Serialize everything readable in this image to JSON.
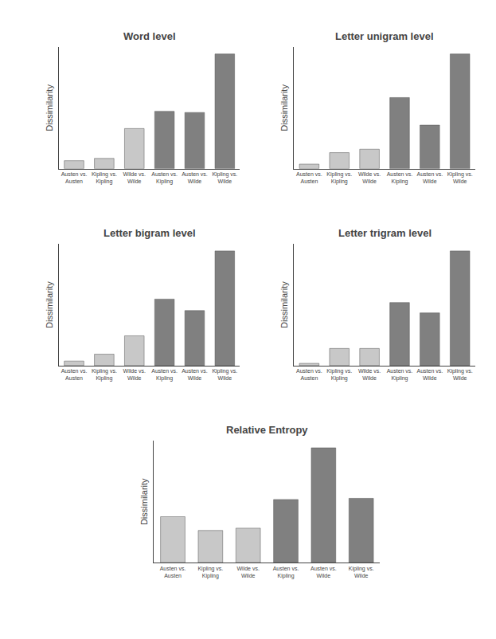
{
  "chart_data": [
    {
      "type": "bar",
      "title": "Word level",
      "categories": [
        "Austen vs.\nAusten",
        "Kipling vs.\nKipling",
        "Wilde vs.\nWilde",
        "Austen vs.\nKipling",
        "Austen vs.\nWilde",
        "Kipling vs.\nWilde"
      ],
      "values": [
        0.07,
        0.09,
        0.35,
        0.5,
        0.49,
        1.0
      ],
      "colors": [
        "#c8c8c8",
        "#c8c8c8",
        "#c8c8c8",
        "#808080",
        "#808080",
        "#808080"
      ],
      "ylabel": "Dissimilarity",
      "ylim": [
        0,
        1.06
      ],
      "yticks": [],
      "tick_labels": "x",
      "grid": false
    },
    {
      "type": "bar",
      "title": "Letter unigram level",
      "categories": [
        "Austen vs.\nAusten",
        "Kipling vs.\nKipling",
        "Wilde vs.\nWilde",
        "Austen vs.\nKipling",
        "Austen vs.\nWilde",
        "Kipling vs.\nWilde"
      ],
      "values": [
        0.04,
        0.14,
        0.17,
        0.62,
        0.38,
        1.0
      ],
      "colors": [
        "#c8c8c8",
        "#c8c8c8",
        "#c8c8c8",
        "#808080",
        "#808080",
        "#808080"
      ],
      "ylabel": "Dissimilarity",
      "ylim": [
        0,
        1.06
      ],
      "yticks": [],
      "tick_labels": "x",
      "grid": false
    },
    {
      "type": "bar",
      "title": "Letter bigram level",
      "categories": [
        "Austen vs.\nAusten",
        "Kipling vs.\nKipling",
        "Wilde vs.\nWilde",
        "Austen vs.\nKipling",
        "Austen vs.\nWilde",
        "Kipling vs.\nWilde"
      ],
      "values": [
        0.04,
        0.1,
        0.26,
        0.58,
        0.48,
        1.0
      ],
      "colors": [
        "#c8c8c8",
        "#c8c8c8",
        "#c8c8c8",
        "#808080",
        "#808080",
        "#808080"
      ],
      "ylabel": "Dissimilarity",
      "ylim": [
        0,
        1.06
      ],
      "yticks": [],
      "tick_labels": "x",
      "grid": false
    },
    {
      "type": "bar",
      "title": "Letter trigram level",
      "categories": [
        "Austen vs.\nAusten",
        "Kipling vs.\nKipling",
        "Wilde vs.\nWilde",
        "Austen vs.\nKipling",
        "Austen vs.\nWilde",
        "Kipling vs.\nWilde"
      ],
      "values": [
        0.02,
        0.15,
        0.15,
        0.55,
        0.46,
        1.0
      ],
      "colors": [
        "#c8c8c8",
        "#c8c8c8",
        "#c8c8c8",
        "#808080",
        "#808080",
        "#808080"
      ],
      "ylabel": "Dissimilarity",
      "ylim": [
        0,
        1.06
      ],
      "yticks": [],
      "tick_labels": "x",
      "grid": false
    },
    {
      "type": "bar",
      "title": "Relative Entropy",
      "categories": [
        "Austen vs.\nAusten",
        "Kipling vs.\nKipling",
        "Wilde vs.\nWilde",
        "Austen vs.\nKipling",
        "Austen vs.\nWilde",
        "Kipling vs.\nWilde"
      ],
      "values": [
        0.4,
        0.28,
        0.3,
        0.55,
        1.0,
        0.56
      ],
      "colors": [
        "#c8c8c8",
        "#c8c8c8",
        "#c8c8c8",
        "#808080",
        "#808080",
        "#808080"
      ],
      "ylabel": "Dissimilarity",
      "ylim": [
        0,
        1.06
      ],
      "yticks": [],
      "tick_labels": "x",
      "grid": false
    }
  ]
}
